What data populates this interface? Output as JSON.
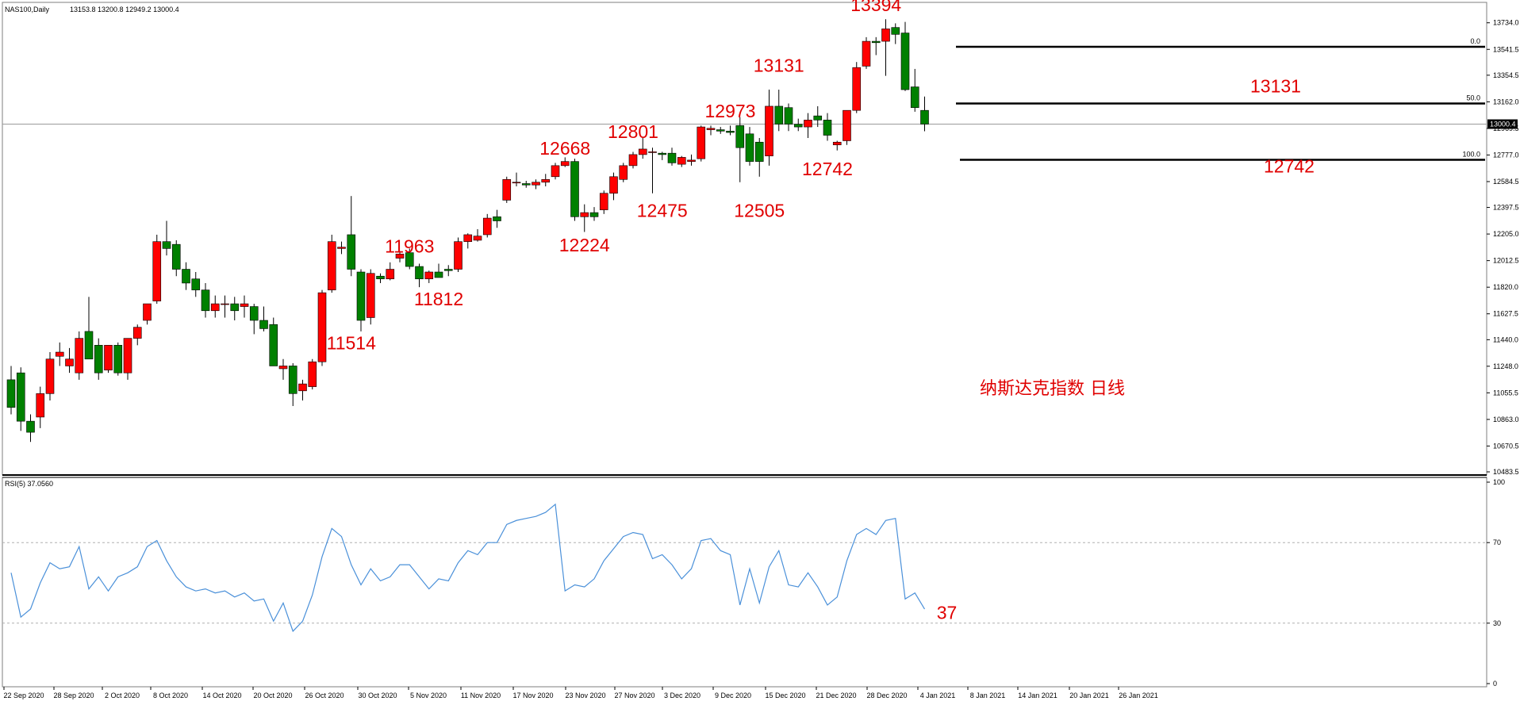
{
  "header": {
    "symbol": "NAS100,Daily",
    "ohlc": "13153.8 13200.8 12949.2 13000.4"
  },
  "rsi_header": "RSI(5) 37.0560",
  "caption": "纳斯达克指数 日线",
  "current_price_label": "13000.4",
  "fib_labels": [
    "0.0",
    "50.0",
    "100.0"
  ],
  "price_ticks": [
    "13734.0",
    "13541.5",
    "13354.5",
    "13162.0",
    "12969.5",
    "12777.0",
    "12584.5",
    "12397.5",
    "12205.0",
    "12012.5",
    "11820.0",
    "11627.5",
    "11440.0",
    "11248.0",
    "11055.5",
    "10863.0",
    "10670.5",
    "10483.5"
  ],
  "rsi_ticks": [
    "100",
    "70",
    "30",
    "0"
  ],
  "date_labels": [
    "22 Sep 2020",
    "28 Sep 2020",
    "2 Oct 2020",
    "8 Oct 2020",
    "14 Oct 2020",
    "20 Oct 2020",
    "26 Oct 2020",
    "30 Oct 2020",
    "5 Nov 2020",
    "11 Nov 2020",
    "17 Nov 2020",
    "23 Nov 2020",
    "27 Nov 2020",
    "3 Dec 2020",
    "9 Dec 2020",
    "15 Dec 2020",
    "21 Dec 2020",
    "28 Dec 2020",
    "4 Jan 2021",
    "8 Jan 2021",
    "14 Jan 2021",
    "20 Jan 2021",
    "26 Jan 2021"
  ],
  "colors": {
    "up": "#ff0000",
    "down": "#008000",
    "rsi": "#4a90d9",
    "annotation": "#e00000"
  },
  "chart_data": {
    "type": "candlestick",
    "price_range": [
      10483.5,
      13830
    ],
    "rsi_range": [
      0,
      100
    ],
    "rsi_levels": [
      70,
      30
    ],
    "current_price": 13000.4,
    "fib_levels": [
      {
        "label": "0.0",
        "value": 13560
      },
      {
        "label": "50.0",
        "value": 13150
      },
      {
        "label": "100.0",
        "value": 12742
      }
    ],
    "candles": [
      [
        11150,
        11250,
        10900,
        10950
      ],
      [
        11200,
        11240,
        10780,
        10850
      ],
      [
        10850,
        10900,
        10700,
        10770
      ],
      [
        10880,
        11100,
        10800,
        11050
      ],
      [
        11050,
        11350,
        11000,
        11300
      ],
      [
        11320,
        11420,
        11250,
        11350
      ],
      [
        11250,
        11380,
        11200,
        11300
      ],
      [
        11200,
        11500,
        11150,
        11450
      ],
      [
        11500,
        11750,
        11300,
        11300
      ],
      [
        11400,
        11450,
        11150,
        11200
      ],
      [
        11220,
        11400,
        11200,
        11400
      ],
      [
        11400,
        11420,
        11180,
        11200
      ],
      [
        11200,
        11450,
        11150,
        11450
      ],
      [
        11450,
        11550,
        11400,
        11530
      ],
      [
        11580,
        11700,
        11550,
        11700
      ],
      [
        11720,
        12200,
        11700,
        12150
      ],
      [
        12150,
        12300,
        12050,
        12100
      ],
      [
        12130,
        12160,
        11900,
        11950
      ],
      [
        11950,
        12000,
        11800,
        11850
      ],
      [
        11880,
        11930,
        11750,
        11800
      ],
      [
        11800,
        11850,
        11600,
        11650
      ],
      [
        11650,
        11760,
        11600,
        11700
      ],
      [
        11700,
        11760,
        11600,
        11700
      ],
      [
        11700,
        11750,
        11580,
        11650
      ],
      [
        11680,
        11760,
        11600,
        11700
      ],
      [
        11680,
        11700,
        11480,
        11580
      ],
      [
        11580,
        11680,
        11500,
        11520
      ],
      [
        11550,
        11600,
        11250,
        11250
      ],
      [
        11230,
        11300,
        11150,
        11250
      ],
      [
        11250,
        11270,
        10960,
        11050
      ],
      [
        11070,
        11150,
        11000,
        11120
      ],
      [
        11100,
        11300,
        11080,
        11280
      ],
      [
        11280,
        11800,
        11250,
        11780
      ],
      [
        11800,
        12200,
        11780,
        12150
      ],
      [
        12100,
        12150,
        12060,
        12110
      ],
      [
        12200,
        12480,
        11900,
        11950
      ],
      [
        11930,
        11950,
        11500,
        11580
      ],
      [
        11600,
        11950,
        11550,
        11920
      ],
      [
        11900,
        11920,
        11850,
        11880
      ],
      [
        11880,
        12000,
        11870,
        11950
      ],
      [
        12030,
        12080,
        12000,
        12060
      ],
      [
        12070,
        12100,
        11950,
        11970
      ],
      [
        11970,
        11990,
        11820,
        11880
      ],
      [
        11880,
        11940,
        11850,
        11930
      ],
      [
        11930,
        11990,
        11900,
        11890
      ],
      [
        11950,
        11980,
        11900,
        11940
      ],
      [
        11950,
        12180,
        11930,
        12150
      ],
      [
        12150,
        12210,
        12100,
        12200
      ],
      [
        12160,
        12240,
        12150,
        12190
      ],
      [
        12200,
        12350,
        12180,
        12320
      ],
      [
        12330,
        12380,
        12250,
        12300
      ],
      [
        12450,
        12620,
        12430,
        12600
      ],
      [
        12580,
        12650,
        12550,
        12580
      ],
      [
        12570,
        12590,
        12540,
        12560
      ],
      [
        12560,
        12600,
        12530,
        12580
      ],
      [
        12580,
        12640,
        12550,
        12600
      ],
      [
        12620,
        12720,
        12600,
        12700
      ],
      [
        12700,
        12760,
        12690,
        12730
      ],
      [
        12730,
        12750,
        12300,
        12330
      ],
      [
        12330,
        12420,
        12220,
        12360
      ],
      [
        12360,
        12400,
        12300,
        12330
      ],
      [
        12380,
        12520,
        12350,
        12500
      ],
      [
        12500,
        12650,
        12450,
        12620
      ],
      [
        12600,
        12720,
        12580,
        12700
      ],
      [
        12700,
        12800,
        12680,
        12780
      ],
      [
        12780,
        12900,
        12750,
        12820
      ],
      [
        12800,
        12830,
        12500,
        12800
      ],
      [
        12790,
        12800,
        12740,
        12780
      ],
      [
        12790,
        12830,
        12700,
        12720
      ],
      [
        12710,
        12770,
        12690,
        12760
      ],
      [
        12730,
        12780,
        12700,
        12740
      ],
      [
        12750,
        12990,
        12730,
        12980
      ],
      [
        12960,
        12990,
        12920,
        12970
      ],
      [
        12960,
        12980,
        12930,
        12950
      ],
      [
        12950,
        12990,
        12920,
        12940
      ],
      [
        12990,
        13050,
        12580,
        12830
      ],
      [
        12930,
        12980,
        12700,
        12730
      ],
      [
        12870,
        12900,
        12620,
        12730
      ],
      [
        12770,
        13250,
        12700,
        13130
      ],
      [
        13130,
        13250,
        12950,
        13000
      ],
      [
        13120,
        13150,
        12950,
        13000
      ],
      [
        13000,
        13040,
        12950,
        12980
      ],
      [
        12980,
        13080,
        12900,
        13030
      ],
      [
        13060,
        13130,
        12980,
        13030
      ],
      [
        13030,
        13080,
        12880,
        12920
      ],
      [
        12850,
        12880,
        12810,
        12870
      ],
      [
        12880,
        13100,
        12850,
        13100
      ],
      [
        13100,
        13450,
        13080,
        13410
      ],
      [
        13420,
        13630,
        13400,
        13600
      ],
      [
        13600,
        13630,
        13500,
        13590
      ],
      [
        13600,
        13760,
        13350,
        13690
      ],
      [
        13700,
        13730,
        13580,
        13650
      ],
      [
        13660,
        13740,
        13240,
        13250
      ],
      [
        13270,
        13400,
        13090,
        13120
      ],
      [
        13100,
        13200,
        12949.2,
        13000.4
      ]
    ],
    "rsi": [
      55,
      33,
      37,
      50,
      60,
      57,
      58,
      68,
      47,
      53,
      46,
      53,
      55,
      58,
      68,
      71,
      61,
      53,
      48,
      46,
      47,
      45,
      46,
      43,
      45,
      41,
      42,
      31,
      40,
      26,
      31,
      44,
      63,
      77,
      73,
      59,
      49,
      57,
      51,
      53,
      59,
      59,
      53,
      47,
      52,
      51,
      60,
      66,
      64,
      70,
      70,
      79,
      81,
      82,
      83,
      85,
      89,
      46,
      49,
      48,
      52,
      61,
      67,
      73,
      75,
      74,
      62,
      64,
      59,
      52,
      57,
      71,
      72,
      66,
      64,
      39,
      57,
      40,
      58,
      66,
      49,
      48,
      55,
      48,
      39,
      43,
      61,
      74,
      77,
      74,
      81,
      82,
      42,
      45,
      37
    ],
    "price_annotations": [
      {
        "text": "13394",
        "i": 89,
        "v": 13820
      },
      {
        "text": "13131",
        "i": 79,
        "v": 13380
      },
      {
        "text": "13131",
        "i": "r",
        "v": 13230
      },
      {
        "text": "12973",
        "i": 74,
        "v": 13050
      },
      {
        "text": "12801",
        "i": 64,
        "v": 12900
      },
      {
        "text": "12668",
        "i": 57,
        "v": 12780
      },
      {
        "text": "12742",
        "i": 84,
        "v": 12630
      },
      {
        "text": "12742",
        "i": "r2",
        "v": 12650
      },
      {
        "text": "12475",
        "i": 67,
        "v": 12330
      },
      {
        "text": "12505",
        "i": 77,
        "v": 12330
      },
      {
        "text": "12224",
        "i": 59,
        "v": 12080
      },
      {
        "text": "11963",
        "i": 41,
        "v": 12070
      },
      {
        "text": "11812",
        "i": 44,
        "v": 11690
      },
      {
        "text": "11514",
        "i": 35,
        "v": 11370
      }
    ],
    "rsi_annotation": {
      "text": "37",
      "v": 32
    }
  }
}
